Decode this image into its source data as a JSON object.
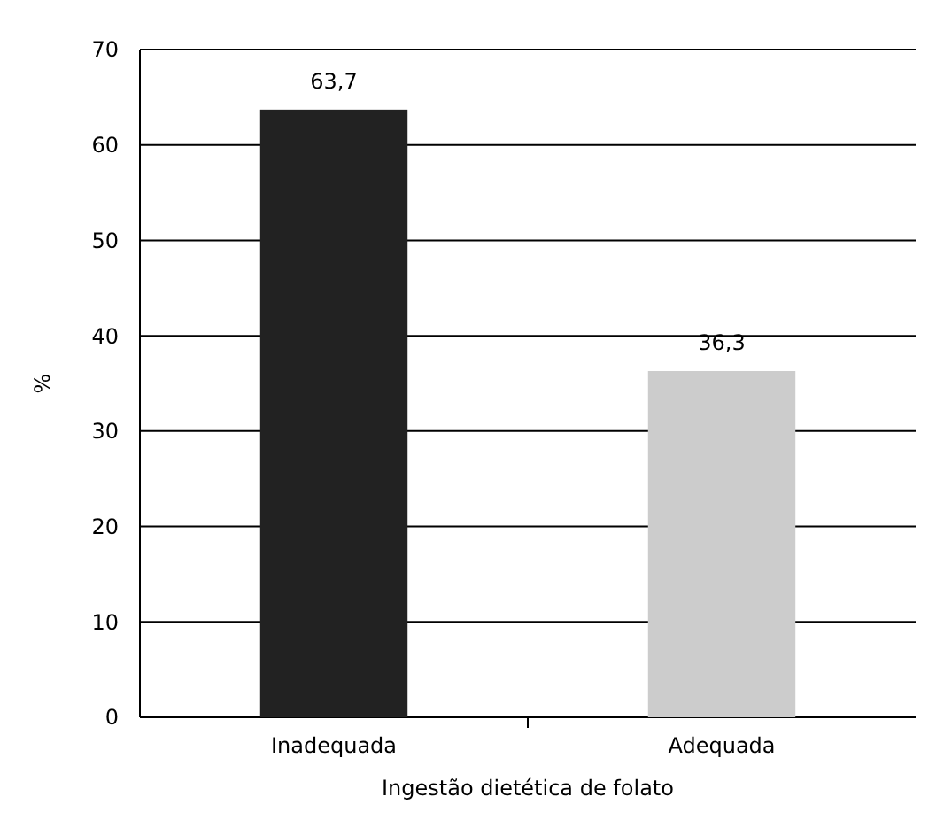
{
  "chart_data": {
    "type": "bar",
    "xlabel": "Ingestão dietética de folato",
    "ylabel": "%",
    "categories": [
      "Inadequada",
      "Adequada"
    ],
    "values": [
      63.7,
      36.3
    ],
    "value_labels": [
      "63,7",
      "36,3"
    ],
    "colors": [
      "#222222",
      "#cccccc"
    ],
    "ylim": [
      0,
      70
    ],
    "yticks": [
      0,
      10,
      20,
      30,
      40,
      50,
      60,
      70
    ],
    "grid": "y"
  }
}
